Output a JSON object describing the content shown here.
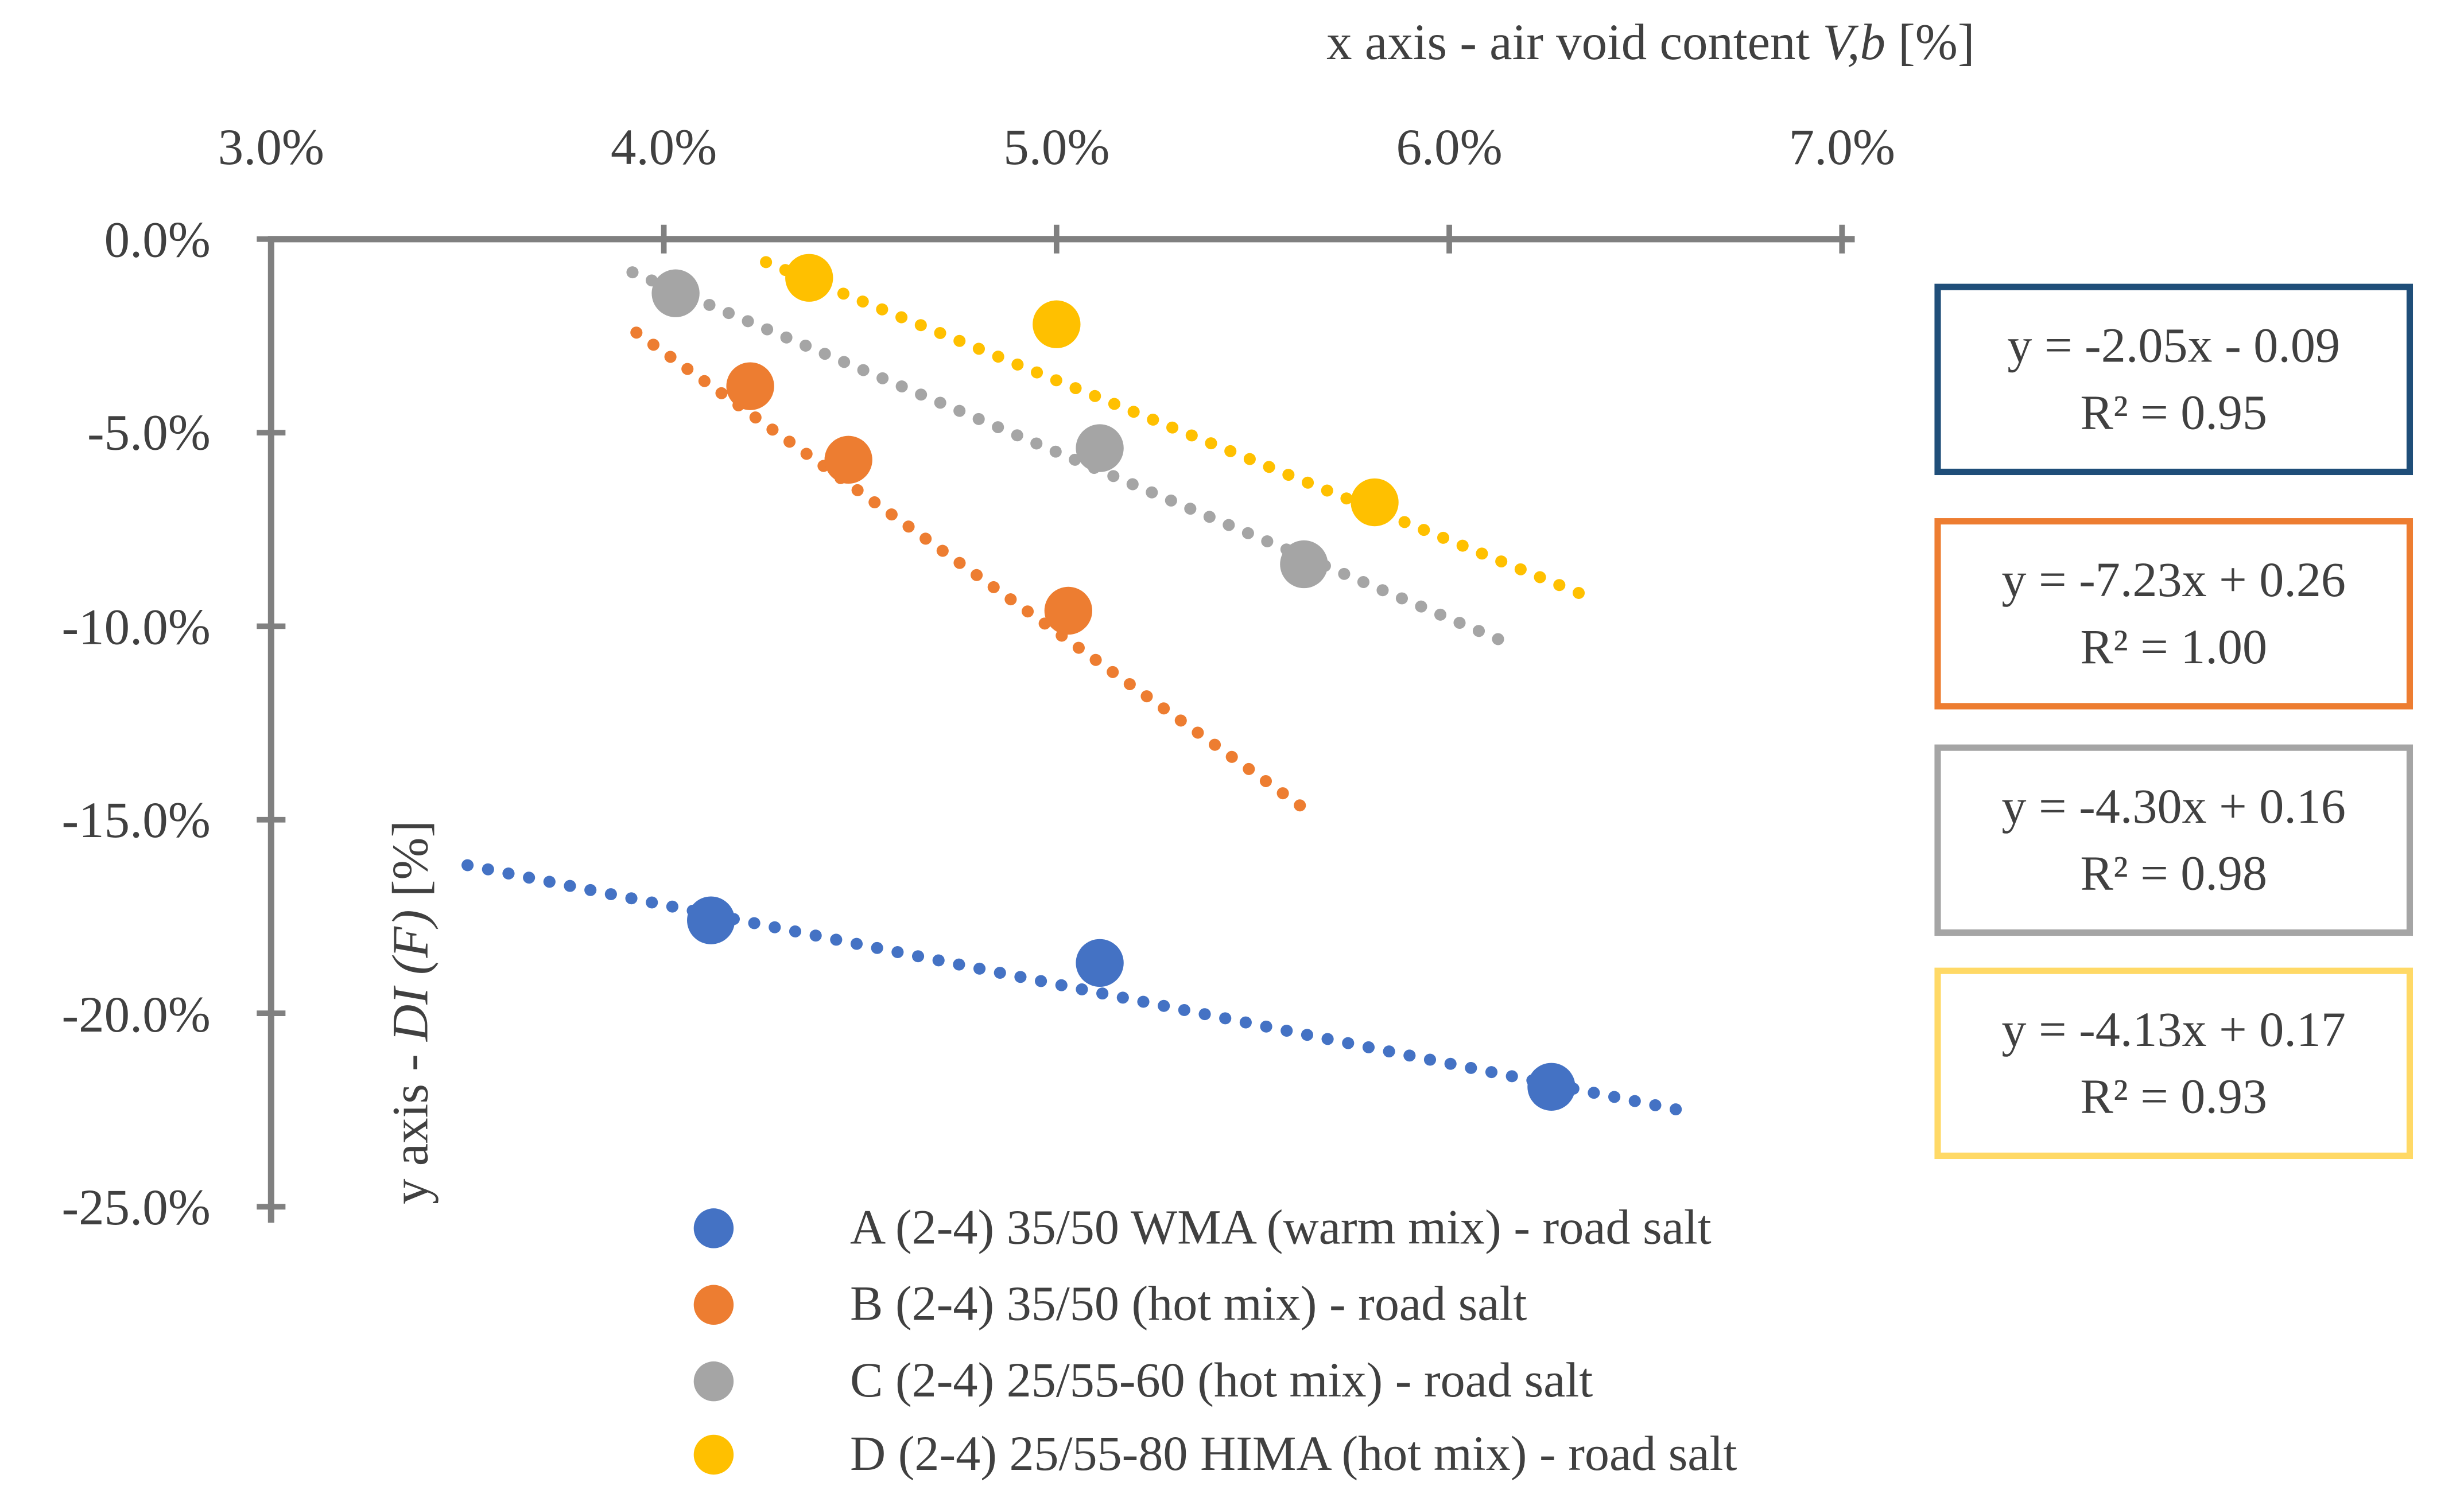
{
  "chart_data": {
    "type": "scatter",
    "x_axis": {
      "title_prefix": "x axis - air void content ",
      "title_italic": "V,b",
      "title_suffix": " [%]",
      "min": 3.0,
      "max": 7.0,
      "tick_values": [
        3.0,
        4.0,
        5.0,
        6.0,
        7.0
      ],
      "tick_labels": [
        "3.0%",
        "4.0%",
        "5.0%",
        "6.0%",
        "7.0%"
      ]
    },
    "y_axis": {
      "title_prefix": "y axis - ",
      "title_italic": "DI (F)",
      "title_suffix": " [%]",
      "min": -25.0,
      "max": 0.0,
      "tick_values": [
        0,
        -5,
        -10,
        -15,
        -20,
        -25
      ],
      "tick_labels": [
        "0.0%",
        "-5.0%",
        "-10.0%",
        "-15.0%",
        "-20.0%",
        "-25.0%"
      ]
    },
    "axis_color": "#808080",
    "text_color": "#404040",
    "series": [
      {
        "name": "A (2-4) 35/50 WMA (warm mix) - road salt",
        "color": "#4472C4",
        "box_color": "#1F4E79",
        "points": [
          [
            4.12,
            -17.6
          ],
          [
            5.11,
            -18.7
          ],
          [
            6.26,
            -21.9
          ]
        ],
        "trend": {
          "slope": -2.05,
          "intercept": -0.09,
          "x_start": 3.5,
          "x_end": 6.58
        },
        "equation": "y = -2.05x - 0.09",
        "r_squared": "R² = 0.95"
      },
      {
        "name": "B (2-4) 35/50 (hot mix) - road salt",
        "color": "#ED7D31",
        "box_color": "#ED7D31",
        "points": [
          [
            4.22,
            -3.8
          ],
          [
            4.47,
            -5.7
          ],
          [
            5.03,
            -9.6
          ]
        ],
        "trend": {
          "slope": -7.23,
          "intercept": 0.26,
          "x_start": 3.93,
          "x_end": 5.62
        },
        "equation": "y = -7.23x + 0.26",
        "r_squared": "R² = 1.00"
      },
      {
        "name": "C (2-4) 25/55-60 (hot mix) - road salt",
        "color": "#A5A5A5",
        "box_color": "#A5A5A5",
        "points": [
          [
            4.03,
            -1.4
          ],
          [
            5.11,
            -5.4
          ],
          [
            5.63,
            -8.4
          ]
        ],
        "trend": {
          "slope": -4.3,
          "intercept": 0.16,
          "x_start": 3.92,
          "x_end": 6.17
        },
        "equation": "y = -4.30x + 0.16",
        "r_squared": "R² = 0.98"
      },
      {
        "name": "D (2-4) 25/55-80 HIMA (hot mix) - road salt",
        "color": "#FFC000",
        "box_color": "#FFD966",
        "points": [
          [
            4.37,
            -1.0
          ],
          [
            5.0,
            -2.2
          ],
          [
            5.81,
            -6.8
          ]
        ],
        "trend": {
          "slope": -4.13,
          "intercept": 0.17,
          "x_start": 4.26,
          "x_end": 6.36
        },
        "equation": "y = -4.13x + 0.17",
        "r_squared": "R² = 0.93"
      }
    ]
  }
}
